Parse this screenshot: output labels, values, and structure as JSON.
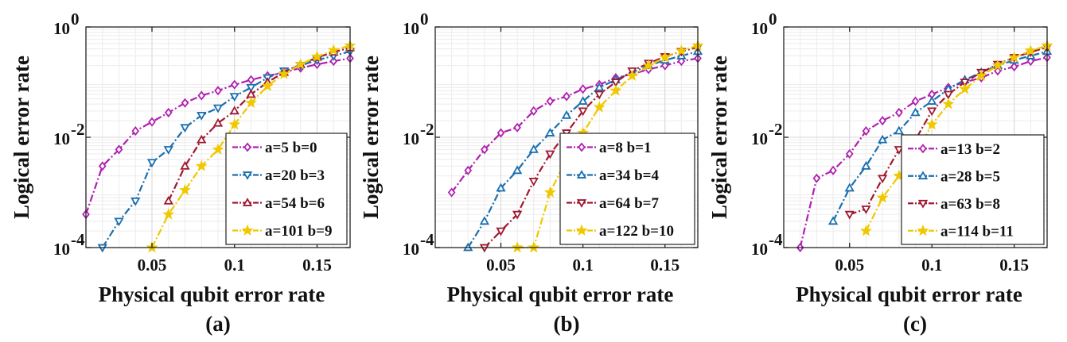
{
  "chart_data": [
    {
      "type": "line",
      "label": "(a)",
      "xlabel": "Physical qubit error rate",
      "ylabel": "Logical error rate",
      "xlim": [
        0.01,
        0.17
      ],
      "ylim": [
        0.0001,
        1
      ],
      "yscale": "log",
      "xticks": [
        "0.05",
        "0.1",
        "0.15"
      ],
      "yticks": [
        "10^-4",
        "10^-2",
        "10^0"
      ],
      "grid": true,
      "legend_position": "bottom-right",
      "series": [
        {
          "name": "a=5 b=0",
          "color": "#b020b0",
          "marker": "diamond",
          "x": [
            0.01,
            0.02,
            0.03,
            0.04,
            0.05,
            0.06,
            0.07,
            0.08,
            0.09,
            0.1,
            0.11,
            0.12,
            0.13,
            0.14,
            0.15,
            0.16,
            0.17
          ],
          "y": [
            0.0004,
            0.003,
            0.006,
            0.013,
            0.019,
            0.028,
            0.042,
            0.057,
            0.07,
            0.09,
            0.11,
            0.13,
            0.15,
            0.18,
            0.21,
            0.24,
            0.27
          ]
        },
        {
          "name": "a=20 b=3",
          "color": "#1a6faf",
          "marker": "triangle-down",
          "x": [
            0.02,
            0.03,
            0.04,
            0.05,
            0.06,
            0.07,
            0.08,
            0.09,
            0.1,
            0.11,
            0.12,
            0.13,
            0.14,
            0.15,
            0.16,
            0.17
          ],
          "y": [
            0.0001,
            0.0003,
            0.0007,
            0.0035,
            0.006,
            0.015,
            0.025,
            0.034,
            0.055,
            0.08,
            0.12,
            0.16,
            0.2,
            0.25,
            0.3,
            0.36
          ]
        },
        {
          "name": "a=54 b=6",
          "color": "#a01830",
          "marker": "triangle-up",
          "x": [
            0.06,
            0.07,
            0.08,
            0.09,
            0.1,
            0.11,
            0.12,
            0.13,
            0.14,
            0.15,
            0.16,
            0.17
          ],
          "y": [
            0.0007,
            0.003,
            0.009,
            0.018,
            0.03,
            0.06,
            0.1,
            0.15,
            0.21,
            0.28,
            0.35,
            0.42
          ]
        },
        {
          "name": "a=101 b=9",
          "color": "#f0c800",
          "marker": "star",
          "x": [
            0.05,
            0.06,
            0.07,
            0.08,
            0.09,
            0.1,
            0.11,
            0.12,
            0.13,
            0.14,
            0.15,
            0.16,
            0.17
          ],
          "y": [
            0.0001,
            0.0004,
            0.0011,
            0.003,
            0.006,
            0.017,
            0.042,
            0.085,
            0.14,
            0.21,
            0.29,
            0.38,
            0.46
          ]
        }
      ]
    },
    {
      "type": "line",
      "label": "(b)",
      "xlabel": "Physical qubit error rate",
      "ylabel": "Logical error rate",
      "xlim": [
        0.01,
        0.17
      ],
      "ylim": [
        0.0001,
        1
      ],
      "yscale": "log",
      "xticks": [
        "0.05",
        "0.1",
        "0.15"
      ],
      "yticks": [
        "10^-4",
        "10^-2",
        "10^0"
      ],
      "grid": true,
      "legend_position": "bottom-right",
      "series": [
        {
          "name": "a=8 b=1",
          "color": "#b020b0",
          "marker": "diamond",
          "x": [
            0.02,
            0.03,
            0.04,
            0.05,
            0.06,
            0.07,
            0.08,
            0.09,
            0.1,
            0.11,
            0.12,
            0.13,
            0.14,
            0.15,
            0.16,
            0.17
          ],
          "y": [
            0.001,
            0.0025,
            0.006,
            0.012,
            0.015,
            0.03,
            0.045,
            0.055,
            0.075,
            0.09,
            0.12,
            0.14,
            0.17,
            0.2,
            0.24,
            0.27
          ]
        },
        {
          "name": "a=34 b=4",
          "color": "#1a6faf",
          "marker": "triangle-up",
          "x": [
            0.03,
            0.04,
            0.05,
            0.06,
            0.07,
            0.08,
            0.09,
            0.1,
            0.11,
            0.12,
            0.13,
            0.14,
            0.15,
            0.16,
            0.17
          ],
          "y": [
            0.0001,
            0.0003,
            0.0012,
            0.0025,
            0.006,
            0.012,
            0.025,
            0.045,
            0.08,
            0.11,
            0.15,
            0.2,
            0.25,
            0.3,
            0.36
          ]
        },
        {
          "name": "a=64 b=7",
          "color": "#a01830",
          "marker": "triangle-down",
          "x": [
            0.04,
            0.05,
            0.06,
            0.07,
            0.08,
            0.09,
            0.1,
            0.11,
            0.12,
            0.13,
            0.14,
            0.15,
            0.16,
            0.17
          ],
          "y": [
            0.0001,
            0.0002,
            0.0004,
            0.0016,
            0.005,
            0.012,
            0.03,
            0.06,
            0.1,
            0.16,
            0.22,
            0.29,
            0.36,
            0.43
          ]
        },
        {
          "name": "a=122 b=10",
          "color": "#f0c800",
          "marker": "star",
          "x": [
            0.06,
            0.07,
            0.08,
            0.09,
            0.1,
            0.11,
            0.12,
            0.13,
            0.14,
            0.15,
            0.16,
            0.17
          ],
          "y": [
            0.0001,
            0.0001,
            0.001,
            0.004,
            0.012,
            0.035,
            0.07,
            0.13,
            0.2,
            0.28,
            0.37,
            0.46
          ]
        }
      ]
    },
    {
      "type": "line",
      "label": "(c)",
      "xlabel": "Physical qubit error rate",
      "ylabel": "Logical error rate",
      "xlim": [
        0.01,
        0.17
      ],
      "ylim": [
        0.0001,
        1
      ],
      "yscale": "log",
      "xticks": [
        "0.05",
        "0.1",
        "0.15"
      ],
      "yticks": [
        "10^-4",
        "10^-2",
        "10^0"
      ],
      "grid": true,
      "legend_position": "bottom-right",
      "series": [
        {
          "name": "a=13 b=2",
          "color": "#b020b0",
          "marker": "diamond",
          "x": [
            0.02,
            0.03,
            0.04,
            0.05,
            0.06,
            0.07,
            0.08,
            0.09,
            0.1,
            0.11,
            0.12,
            0.13,
            0.14,
            0.15,
            0.16,
            0.17
          ],
          "y": [
            0.0001,
            0.0018,
            0.0025,
            0.005,
            0.013,
            0.02,
            0.028,
            0.045,
            0.06,
            0.08,
            0.1,
            0.12,
            0.16,
            0.19,
            0.24,
            0.28
          ]
        },
        {
          "name": "a=28 b=5",
          "color": "#1a6faf",
          "marker": "triangle-up",
          "x": [
            0.04,
            0.05,
            0.06,
            0.07,
            0.08,
            0.09,
            0.1,
            0.11,
            0.12,
            0.13,
            0.14,
            0.15,
            0.16,
            0.17
          ],
          "y": [
            0.0003,
            0.0012,
            0.003,
            0.009,
            0.013,
            0.028,
            0.045,
            0.075,
            0.11,
            0.15,
            0.2,
            0.25,
            0.3,
            0.36
          ]
        },
        {
          "name": "a=63 b=8",
          "color": "#a01830",
          "marker": "triangle-down",
          "x": [
            0.05,
            0.06,
            0.07,
            0.08,
            0.09,
            0.1,
            0.11,
            0.12,
            0.13,
            0.14,
            0.15,
            0.16,
            0.17
          ],
          "y": [
            0.0004,
            0.0005,
            0.0018,
            0.006,
            0.009,
            0.03,
            0.06,
            0.1,
            0.15,
            0.21,
            0.28,
            0.35,
            0.43
          ]
        },
        {
          "name": "a=114 b=11",
          "color": "#f0c800",
          "marker": "star",
          "x": [
            0.06,
            0.07,
            0.08,
            0.09,
            0.1,
            0.11,
            0.12,
            0.13,
            0.14,
            0.15,
            0.16,
            0.17
          ],
          "y": [
            0.0002,
            0.0008,
            0.002,
            0.005,
            0.017,
            0.04,
            0.075,
            0.13,
            0.2,
            0.28,
            0.37,
            0.46
          ]
        }
      ]
    }
  ]
}
